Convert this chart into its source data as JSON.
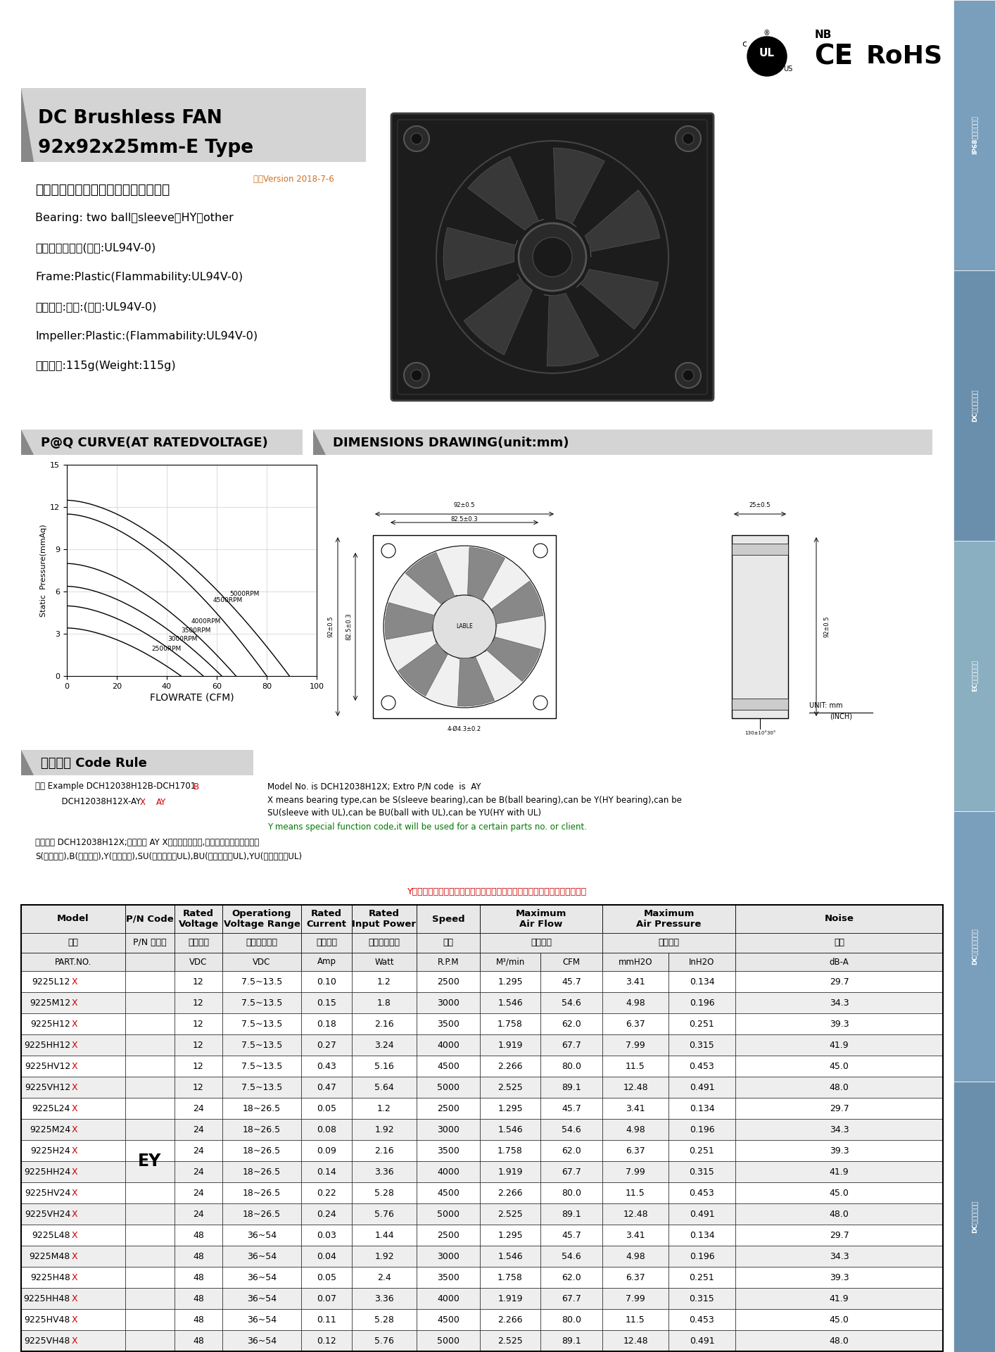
{
  "title_line1": "DC Brushless FAN",
  "title_line2": "92x92x25mm-E Type",
  "version": "版次Version 2018-7-6",
  "bearing_cn": "轴承结构：双滚珠、含油、液压、其他",
  "bearing_en": "Bearing: two ball、sleeve、HY、other",
  "frame_cn": "框外材质：塑胶(等级:UL94V-0)",
  "frame_en": "Frame:Plastic(Flammability:UL94V-0)",
  "impeller_cn": "扇叶材质:塑胶:(等级:UL94V-0)",
  "impeller_en": "Impeller:Plastic:(Flammability:UL94V-0)",
  "weight": "风扇单重:115g(Weight:115g)",
  "pq_title": "P@Q CURVE(AT RATEDVOLTAGE)",
  "dim_title": "DIMENSIONS DRAWING(unit:mm)",
  "code_title": "编码规则 Code Rule",
  "code_ex1": "例子 Example DCH12038H12B-DCH1701",
  "code_ex2": "          DCH12038H12X-AY",
  "code_text1": "Model No. is DCH12038H12X; Extro P/N code  is  AY",
  "code_text2": "X means bearing type,can be S(sleeve bearing),can be B(ball bearing),can be Y(HY bearing),can be",
  "code_text2b": "SU(sleeve with UL),can be BU(ball with UL),can be YU(HY with UL)",
  "code_text3": "Y means special function code,it will be used for a certain parts no. or client.",
  "code_cn1": "产品型号 DCH12038H12X;附加代码 AY X是一个不确定值,它代表了不同的轴承类型",
  "code_cn2": "S(含油轴承),B(滚珠轴承),Y(液压轴承),SU(含油轴承带UL),BU(滚珠轴承带UL),YU(液压轴承带UL)",
  "code_cn3": "Y是一个不确定的值，它代表不同特殊风机功能，由具体客户或者料号来确定",
  "table_data": [
    [
      "9225L12",
      "X",
      "12",
      "7.5~13.5",
      "0.10",
      "1.2",
      "2500",
      "1.295",
      "45.7",
      "3.41",
      "0.134",
      "29.7"
    ],
    [
      "9225M12",
      "X",
      "12",
      "7.5~13.5",
      "0.15",
      "1.8",
      "3000",
      "1.546",
      "54.6",
      "4.98",
      "0.196",
      "34.3"
    ],
    [
      "9225H12",
      "X",
      "12",
      "7.5~13.5",
      "0.18",
      "2.16",
      "3500",
      "1.758",
      "62.0",
      "6.37",
      "0.251",
      "39.3"
    ],
    [
      "9225HH12",
      "X",
      "12",
      "7.5~13.5",
      "0.27",
      "3.24",
      "4000",
      "1.919",
      "67.7",
      "7.99",
      "0.315",
      "41.9"
    ],
    [
      "9225HV12",
      "X",
      "12",
      "7.5~13.5",
      "0.43",
      "5.16",
      "4500",
      "2.266",
      "80.0",
      "11.5",
      "0.453",
      "45.0"
    ],
    [
      "9225VH12",
      "X",
      "12",
      "7.5~13.5",
      "0.47",
      "5.64",
      "5000",
      "2.525",
      "89.1",
      "12.48",
      "0.491",
      "48.0"
    ],
    [
      "9225L24",
      "X",
      "24",
      "18~26.5",
      "0.05",
      "1.2",
      "2500",
      "1.295",
      "45.7",
      "3.41",
      "0.134",
      "29.7"
    ],
    [
      "9225M24",
      "X",
      "24",
      "18~26.5",
      "0.08",
      "1.92",
      "3000",
      "1.546",
      "54.6",
      "4.98",
      "0.196",
      "34.3"
    ],
    [
      "9225H24",
      "X",
      "24",
      "18~26.5",
      "0.09",
      "2.16",
      "3500",
      "1.758",
      "62.0",
      "6.37",
      "0.251",
      "39.3"
    ],
    [
      "9225HH24",
      "X",
      "24",
      "18~26.5",
      "0.14",
      "3.36",
      "4000",
      "1.919",
      "67.7",
      "7.99",
      "0.315",
      "41.9"
    ],
    [
      "9225HV24",
      "X",
      "24",
      "18~26.5",
      "0.22",
      "5.28",
      "4500",
      "2.266",
      "80.0",
      "11.5",
      "0.453",
      "45.0"
    ],
    [
      "9225VH24",
      "X",
      "24",
      "18~26.5",
      "0.24",
      "5.76",
      "5000",
      "2.525",
      "89.1",
      "12.48",
      "0.491",
      "48.0"
    ],
    [
      "9225L48",
      "X",
      "48",
      "36~54",
      "0.03",
      "1.44",
      "2500",
      "1.295",
      "45.7",
      "3.41",
      "0.134",
      "29.7"
    ],
    [
      "9225M48",
      "X",
      "48",
      "36~54",
      "0.04",
      "1.92",
      "3000",
      "1.546",
      "54.6",
      "4.98",
      "0.196",
      "34.3"
    ],
    [
      "9225H48",
      "X",
      "48",
      "36~54",
      "0.05",
      "2.4",
      "3500",
      "1.758",
      "62.0",
      "6.37",
      "0.251",
      "39.3"
    ],
    [
      "9225HH48",
      "X",
      "48",
      "36~54",
      "0.07",
      "3.36",
      "4000",
      "1.919",
      "67.7",
      "7.99",
      "0.315",
      "41.9"
    ],
    [
      "9225HV48",
      "X",
      "48",
      "36~54",
      "0.11",
      "5.28",
      "4500",
      "2.266",
      "80.0",
      "11.5",
      "0.453",
      "45.0"
    ],
    [
      "9225VH48",
      "X",
      "48",
      "36~54",
      "0.12",
      "5.76",
      "5000",
      "2.525",
      "89.1",
      "12.48",
      "0.491",
      "48.0"
    ]
  ],
  "pn_code_ey": "EY",
  "sidebar_texts": [
    "DC小型风机系列",
    "DC突出型风机系列",
    "EC小型风机系列",
    "DC大型风机系列",
    "IP68防水风机系列"
  ],
  "sidebar_colors": [
    "#6a8fad",
    "#7a9fbd",
    "#8aafc0",
    "#6a8fad",
    "#7a9fbd"
  ],
  "bg_color": "#ffffff",
  "gray_header": "#d4d4d4",
  "light_gray": "#eeeeee",
  "red": "#cc0000",
  "orange": "#d07020",
  "green": "#007700"
}
